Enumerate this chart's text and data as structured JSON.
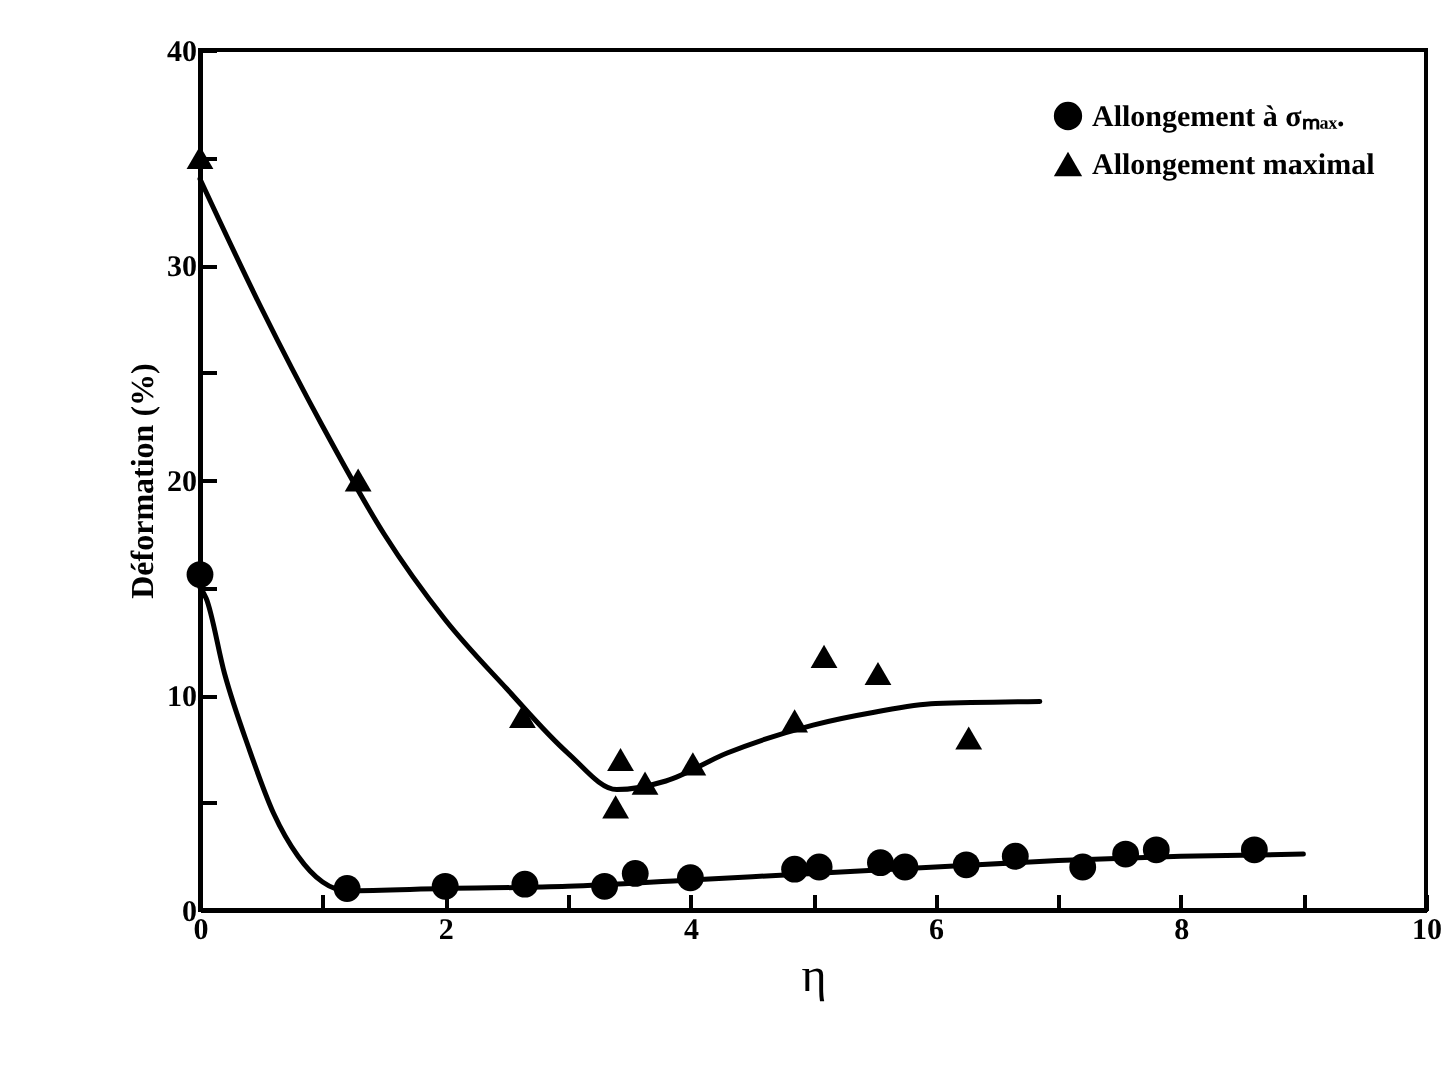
{
  "chart_data": {
    "type": "scatter",
    "xlabel": "η",
    "ylabel": "Déformation (%)",
    "xlim": [
      0,
      10
    ],
    "ylim": [
      0,
      40
    ],
    "xticks": [
      0,
      {
        "value": 1,
        "label": null
      },
      2,
      {
        "value": 3,
        "label": null
      },
      4,
      {
        "value": 5,
        "label": null
      },
      6,
      {
        "value": 7,
        "label": null
      },
      8,
      {
        "value": 9,
        "label": null
      },
      10
    ],
    "yticks": [
      0,
      {
        "value": 5,
        "label": null
      },
      10,
      {
        "value": 15,
        "label": null
      },
      20,
      {
        "value": 25,
        "label": null
      },
      30,
      {
        "value": 35,
        "label": null
      },
      40
    ],
    "legend": "top right",
    "grid": false,
    "series": [
      {
        "type": "line",
        "color": "#000000",
        "line_style": "solid",
        "x": [
          0,
          0.05,
          0.2,
          0.4,
          0.6,
          0.8,
          1.0,
          1.2,
          2,
          3,
          4,
          5,
          6,
          7,
          8,
          9
        ],
        "values": [
          15,
          14.5,
          11,
          7.5,
          4.5,
          2.5,
          1.3,
          0.9,
          1.0,
          1.1,
          1.4,
          1.7,
          2.0,
          2.3,
          2.5,
          2.6
        ]
      },
      {
        "type": "line",
        "color": "#000000",
        "line_style": "solid",
        "x": [
          0,
          0.5,
          1,
          1.5,
          2,
          2.5,
          3,
          3.4,
          3.8,
          4.3,
          5,
          5.5,
          6,
          6.85
        ],
        "values": [
          34,
          28,
          22.5,
          17.5,
          13.5,
          10.3,
          7.3,
          5.6,
          6.0,
          7.3,
          8.6,
          9.2,
          9.6,
          9.7
        ]
      },
      {
        "name": "Allongement à σₘₐₓ.",
        "color": "#000000",
        "marker": "circle",
        "x": [
          0,
          1.2,
          2.0,
          2.65,
          3.3,
          3.55,
          4.0,
          4.85,
          5.05,
          5.55,
          5.75,
          6.25,
          6.65,
          7.2,
          7.55,
          7.8,
          8.6
        ],
        "values": [
          15.6,
          1.0,
          1.1,
          1.2,
          1.1,
          1.7,
          1.5,
          1.9,
          2.0,
          2.2,
          2.0,
          2.1,
          2.5,
          2.0,
          2.6,
          2.8,
          2.8
        ]
      },
      {
        "name": "Allongement maximal",
        "color": "#000000",
        "marker": "triangle",
        "x": [
          0,
          1.29,
          2.63,
          3.43,
          3.39,
          3.63,
          4.02,
          4.85,
          5.09,
          5.53,
          6.27
        ],
        "values": [
          35,
          20,
          9,
          7,
          4.8,
          5.9,
          6.8,
          8.8,
          11.8,
          11,
          8
        ]
      }
    ]
  }
}
